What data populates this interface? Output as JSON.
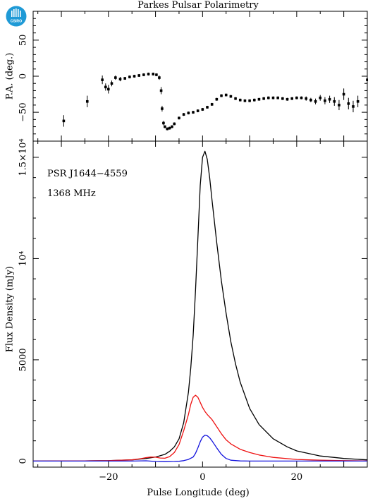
{
  "logo": {
    "text": "CSIRO",
    "color": "#1f9ad6"
  },
  "figure_title": "Parkes Pulsar Polarimetry",
  "chart_data": [
    {
      "type": "scatter",
      "panel": "position-angle",
      "xlabel": "",
      "ylabel": "P.A. (deg.)",
      "xlim": [
        -36,
        35
      ],
      "ylim": [
        -90,
        90
      ],
      "yticks": [
        -50,
        0,
        50
      ],
      "ytick_labels": [
        "−50",
        "0",
        "50"
      ],
      "grid": false,
      "series": [
        {
          "marker": "square",
          "color": "#000000",
          "x": [
            -29.5,
            -24.5,
            -21.3,
            -20.6,
            -20.0,
            -19.3,
            -18.5,
            -17.5,
            -16.5,
            -15.5,
            -14.5,
            -13.5,
            -12.5,
            -11.5,
            -10.5,
            -9.8,
            -9.2,
            -8.8,
            -8.6,
            -8.3,
            -8.0,
            -7.5,
            -7.0,
            -6.5,
            -6.0,
            -5.0,
            -4.0,
            -3.0,
            -2.0,
            -1.0,
            0.0,
            1.0,
            2.0,
            3.0,
            4.0,
            5.0,
            6.0,
            7.0,
            8.0,
            9.0,
            10.0,
            11.0,
            12.0,
            13.0,
            14.0,
            15.0,
            16.0,
            17.0,
            18.0,
            19.0,
            20.0,
            21.0,
            22.0,
            23.0,
            24.0,
            25.0,
            26.0,
            27.0,
            28.0,
            29.0,
            30.0,
            31.0,
            32.0,
            33.0,
            35.0
          ],
          "y": [
            -62,
            -35,
            -5,
            -15,
            -18,
            -10,
            -2,
            -4,
            -3,
            -1,
            0,
            1,
            2,
            3,
            3,
            2,
            -2,
            -20,
            -45,
            -65,
            -70,
            -73,
            -72,
            -70,
            -66,
            -58,
            -53,
            -51,
            -50,
            -48,
            -46,
            -43,
            -39,
            -32,
            -27,
            -26,
            -28,
            -31,
            -33,
            -34,
            -34,
            -33,
            -32,
            -31,
            -30,
            -30,
            -30,
            -31,
            -32,
            -31,
            -30,
            -30,
            -31,
            -33,
            -35,
            -30,
            -34,
            -32,
            -35,
            -40,
            -25,
            -38,
            -42,
            -35,
            -5
          ],
          "errors": [
            8,
            8,
            6,
            5,
            6,
            4,
            3,
            3,
            2,
            2,
            2,
            2,
            2,
            2,
            2,
            2,
            3,
            5,
            4,
            3,
            2,
            2,
            2,
            2,
            2,
            2,
            2,
            2,
            2,
            2,
            2,
            2,
            2,
            2,
            2,
            2,
            2,
            2,
            2,
            2,
            2,
            2,
            2,
            2,
            2,
            2,
            2,
            2,
            2,
            2,
            2,
            2,
            3,
            3,
            4,
            4,
            5,
            5,
            6,
            7,
            8,
            8,
            8,
            8,
            6
          ]
        }
      ]
    },
    {
      "type": "line",
      "panel": "profile",
      "title": "PSR J1644−4559",
      "subtitle": "1368 MHz",
      "xlabel": "Pulse Longitude (deg)",
      "ylabel": "Flux Density (mJy)",
      "xlim": [
        -36,
        35
      ],
      "ylim": [
        -300,
        15800
      ],
      "xticks": [
        -20,
        0,
        20
      ],
      "xtick_labels": [
        "−20",
        "0",
        "20"
      ],
      "yticks": [
        0,
        5000,
        10000,
        15000
      ],
      "ytick_labels": [
        "0",
        "5000",
        "10⁴",
        "1.5×10⁴"
      ],
      "grid": false,
      "series": [
        {
          "name": "",
          "color": "#000000",
          "x": [
            -36,
            -30,
            -25,
            -20,
            -15,
            -12,
            -10,
            -8,
            -7,
            -6,
            -5,
            -4,
            -3,
            -2.5,
            -2,
            -1.5,
            -1,
            -0.5,
            0,
            0.5,
            1,
            1.5,
            2,
            3,
            4,
            5,
            6,
            7,
            8,
            10,
            12,
            15,
            18,
            20,
            25,
            30,
            35
          ],
          "y": [
            0,
            5,
            10,
            20,
            60,
            130,
            200,
            330,
            480,
            700,
            1100,
            1900,
            3400,
            4600,
            6200,
            8400,
            11000,
            13600,
            15000,
            15300,
            14900,
            14000,
            12900,
            10800,
            8900,
            7300,
            5900,
            4800,
            3900,
            2600,
            1800,
            1100,
            700,
            500,
            250,
            130,
            60
          ]
        },
        {
          "name": "",
          "color": "#ee1111",
          "x": [
            -36,
            -30,
            -25,
            -20,
            -15,
            -13,
            -12,
            -11,
            -10,
            -9,
            -8,
            -7,
            -6,
            -5,
            -4,
            -3,
            -2.5,
            -2,
            -1.5,
            -1,
            -0.5,
            0,
            0.5,
            1,
            2,
            3,
            4,
            5,
            6,
            8,
            10,
            12,
            15,
            20,
            25,
            30,
            35
          ],
          "y": [
            0,
            5,
            10,
            20,
            60,
            120,
            170,
            200,
            190,
            150,
            140,
            220,
            420,
            820,
            1500,
            2300,
            2800,
            3150,
            3250,
            3150,
            2900,
            2650,
            2450,
            2300,
            2050,
            1700,
            1350,
            1050,
            850,
            580,
            420,
            300,
            180,
            80,
            40,
            20,
            10
          ]
        },
        {
          "name": "",
          "color": "#1111dd",
          "x": [
            -36,
            -30,
            -20,
            -15,
            -12,
            -10,
            -8,
            -6,
            -5,
            -4,
            -3,
            -2,
            -1.5,
            -1,
            -0.5,
            0,
            0.5,
            1,
            1.5,
            2,
            3,
            4,
            5,
            6,
            8,
            10,
            15,
            20,
            30,
            35
          ],
          "y": [
            0,
            0,
            0,
            0,
            15,
            -20,
            -30,
            -20,
            -10,
            20,
            80,
            200,
            380,
            650,
            950,
            1180,
            1280,
            1250,
            1150,
            1000,
            650,
            330,
            130,
            40,
            5,
            0,
            0,
            0,
            0,
            0
          ]
        }
      ]
    }
  ]
}
